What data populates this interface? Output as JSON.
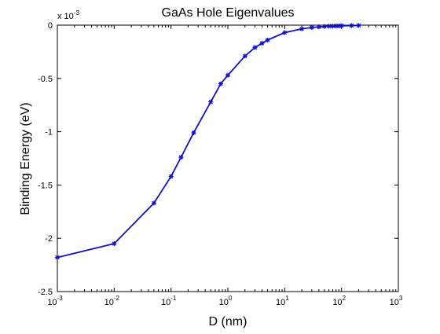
{
  "chart_data": {
    "type": "line",
    "title": "GaAs Hole Eigenvalues",
    "xlabel": "D (nm)",
    "ylabel": "Binding Energy (eV)",
    "x_scale": "log",
    "xlim": [
      0.001,
      1000
    ],
    "ylim": [
      -0.0025,
      0
    ],
    "y_multiplier_label": {
      "base": "x 10",
      "exponent": "-3"
    },
    "x_ticks": [
      {
        "value": 0.001,
        "base": "10",
        "exponent": "-3"
      },
      {
        "value": 0.01,
        "base": "10",
        "exponent": "-2"
      },
      {
        "value": 0.1,
        "base": "10",
        "exponent": "-1"
      },
      {
        "value": 1,
        "base": "10",
        "exponent": "0"
      },
      {
        "value": 10,
        "base": "10",
        "exponent": "1"
      },
      {
        "value": 100,
        "base": "10",
        "exponent": "2"
      },
      {
        "value": 1000,
        "base": "10",
        "exponent": "3"
      }
    ],
    "y_ticks": [
      {
        "value": 0,
        "label": "0"
      },
      {
        "value": -0.0005,
        "label": "-0.5"
      },
      {
        "value": -0.001,
        "label": "-1"
      },
      {
        "value": -0.0015,
        "label": "-1.5"
      },
      {
        "value": -0.002,
        "label": "-2"
      },
      {
        "value": -0.0025,
        "label": "-2.5"
      }
    ],
    "grid": false,
    "legend": "none",
    "series": [
      {
        "color": "#1010c8",
        "marker": "asterisk",
        "points": [
          {
            "x": 0.001,
            "y": -0.00218
          },
          {
            "x": 0.01,
            "y": -0.00205
          },
          {
            "x": 0.05,
            "y": -0.00167
          },
          {
            "x": 0.1,
            "y": -0.00142
          },
          {
            "x": 0.15,
            "y": -0.00124
          },
          {
            "x": 0.25,
            "y": -0.00101
          },
          {
            "x": 0.5,
            "y": -0.00072
          },
          {
            "x": 0.75,
            "y": -0.00055
          },
          {
            "x": 1,
            "y": -0.00047
          },
          {
            "x": 2,
            "y": -0.00029
          },
          {
            "x": 3,
            "y": -0.00021
          },
          {
            "x": 4,
            "y": -0.00017
          },
          {
            "x": 5,
            "y": -0.00014
          },
          {
            "x": 10,
            "y": -7e-05
          },
          {
            "x": 20,
            "y": -3.5e-05
          },
          {
            "x": 30,
            "y": -2.2e-05
          },
          {
            "x": 40,
            "y": -1.6e-05
          },
          {
            "x": 50,
            "y": -1.2e-05
          },
          {
            "x": 60,
            "y": -1e-05
          },
          {
            "x": 70,
            "y": -9e-06
          },
          {
            "x": 80,
            "y": -8e-06
          },
          {
            "x": 90,
            "y": -7e-06
          },
          {
            "x": 100,
            "y": -6e-06
          },
          {
            "x": 150,
            "y": -4e-06
          },
          {
            "x": 200,
            "y": -3e-06
          }
        ]
      }
    ]
  }
}
